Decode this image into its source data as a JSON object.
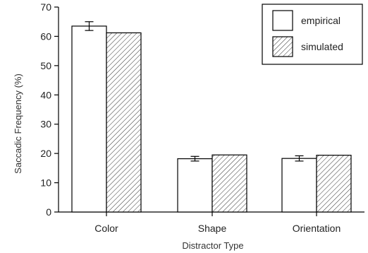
{
  "chart_data": {
    "type": "bar",
    "title": "",
    "xlabel": "Distractor Type",
    "ylabel": "Saccadic Frequency (%)",
    "ylim": [
      0,
      70
    ],
    "yticks": [
      0,
      10,
      20,
      30,
      40,
      50,
      60,
      70
    ],
    "categories": [
      "Color",
      "Shape",
      "Orientation"
    ],
    "series": [
      {
        "name": "empirical",
        "values": [
          63.5,
          18.2,
          18.3
        ],
        "error": [
          1.5,
          0.8,
          0.9
        ],
        "fill": "white"
      },
      {
        "name": "simulated",
        "values": [
          61.2,
          19.5,
          19.4
        ],
        "error": [
          0.1,
          0.1,
          0.1
        ],
        "fill": "hatched"
      }
    ],
    "legend_position": "top-right",
    "grid": false
  }
}
